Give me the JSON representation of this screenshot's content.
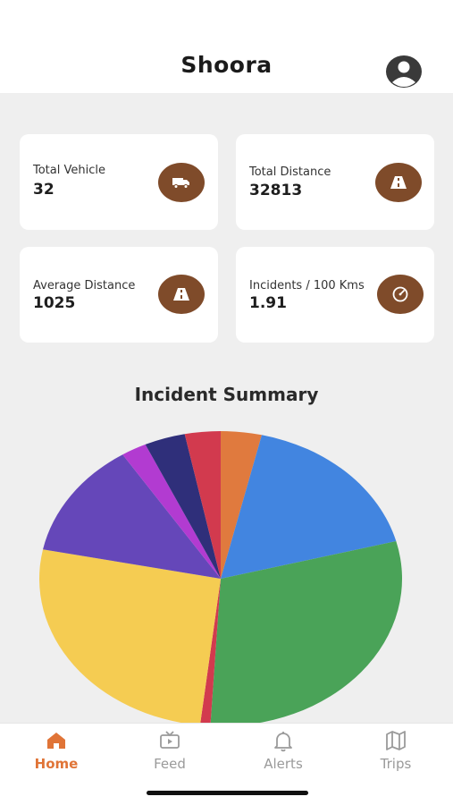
{
  "app": {
    "title": "Shoora"
  },
  "stats": [
    {
      "label": "Total Vehicle",
      "value": "32",
      "icon": "truck-icon"
    },
    {
      "label": "Total Distance",
      "value": "32813",
      "icon": "road-icon"
    },
    {
      "label": "Average Distance",
      "value": "1025",
      "icon": "road-icon"
    },
    {
      "label": "Incidents / 100 Kms",
      "value": "1.91",
      "icon": "speedometer-icon"
    }
  ],
  "chart_data": {
    "type": "pie",
    "title": "Incident Summary",
    "values": [
      4,
      19,
      33,
      1,
      29,
      14,
      2.5,
      4,
      3.5
    ],
    "colors": [
      "#e07a3e",
      "#4285e0",
      "#4aa358",
      "#d23a4e",
      "#f5cc52",
      "#6547b9",
      "#b23bd1",
      "#2f2f7a",
      "#d23a4e"
    ]
  },
  "colors": {
    "accent": "#e07437",
    "badge": "#7f4b2a"
  },
  "tabs": [
    {
      "label": "Home",
      "icon": "home-icon",
      "active": true
    },
    {
      "label": "Feed",
      "icon": "tv-icon",
      "active": false
    },
    {
      "label": "Alerts",
      "icon": "bell-icon",
      "active": false
    },
    {
      "label": "Trips",
      "icon": "map-icon",
      "active": false
    }
  ]
}
